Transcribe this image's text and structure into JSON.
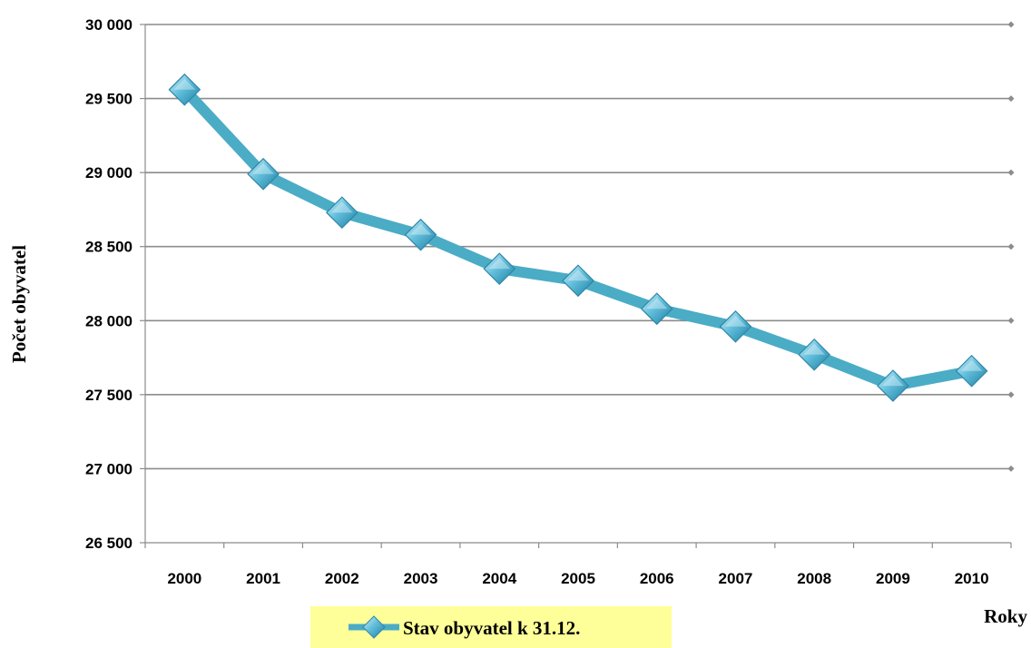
{
  "chart_data": {
    "type": "line",
    "title": "",
    "xlabel": "Roky",
    "ylabel": "Počet obyvatel",
    "categories": [
      "2000",
      "2001",
      "2002",
      "2003",
      "2004",
      "2005",
      "2006",
      "2007",
      "2008",
      "2009",
      "2010"
    ],
    "series": [
      {
        "name": "Stav obyvatel k 31.12.",
        "values": [
          29560,
          28990,
          28730,
          28580,
          28350,
          28270,
          28080,
          27960,
          27770,
          27560,
          27660
        ],
        "color": "#4BACC6",
        "marker": "diamond"
      }
    ],
    "ylim": [
      26500,
      30000
    ],
    "yticks": [
      26500,
      27000,
      27500,
      28000,
      28500,
      29000,
      29500,
      30000
    ],
    "ytick_labels": [
      "26 500",
      "27 000",
      "27 500",
      "28 000",
      "28 500",
      "29 000",
      "29 500",
      "30 000"
    ],
    "grid": true,
    "legend": {
      "position": "bottom",
      "background": "#FFFF99"
    }
  }
}
